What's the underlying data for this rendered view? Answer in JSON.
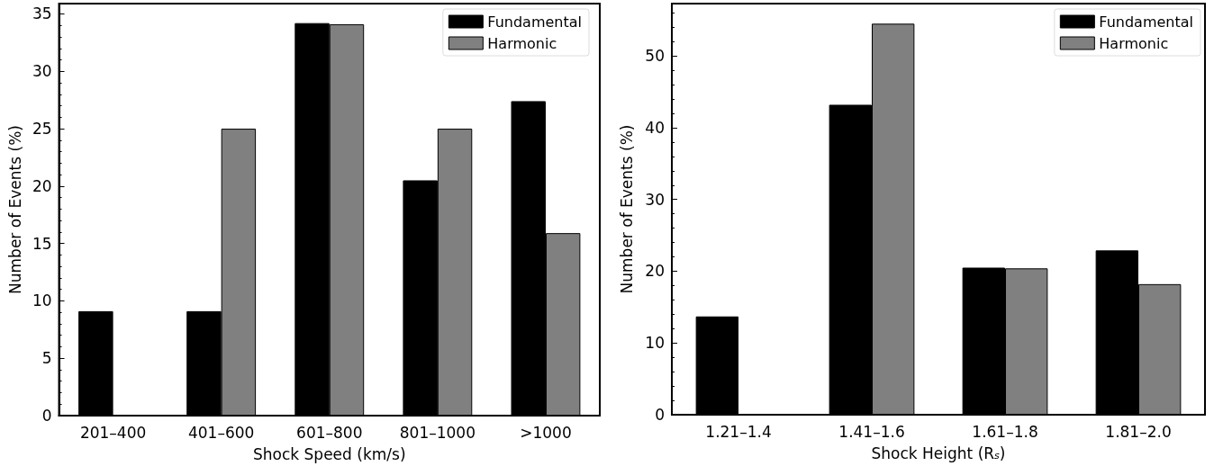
{
  "chart_data": [
    {
      "type": "bar",
      "xlabel": "Shock Speed (km/s)",
      "ylabel": "Number of Events (%)",
      "categories": [
        "201–400",
        "401–600",
        "601–800",
        "801–1000",
        ">1000"
      ],
      "series": [
        {
          "name": "Fundamental",
          "color": "#000000",
          "values": [
            9.1,
            9.1,
            34.2,
            20.5,
            27.4
          ]
        },
        {
          "name": "Harmonic",
          "color": "#808080",
          "values": [
            null,
            25,
            34.1,
            25,
            15.9
          ]
        }
      ],
      "ylim": [
        0,
        35.9
      ],
      "yticks": [
        0,
        5,
        10,
        15,
        20,
        25,
        30,
        35
      ],
      "legend": "top right",
      "grid": false
    },
    {
      "type": "bar",
      "xlabel": "Shock Height (R$_{s}$)",
      "ylabel": "Number of Events (%)",
      "categories": [
        "1.21–1.4",
        "1.41–1.6",
        "1.61–1.8",
        "1.81–2.0"
      ],
      "series": [
        {
          "name": "Fundamental",
          "color": "#000000",
          "values": [
            13.7,
            43.2,
            20.5,
            22.9
          ]
        },
        {
          "name": "Harmonic",
          "color": "#808080",
          "values": [
            null,
            54.5,
            20.4,
            18.2
          ]
        }
      ],
      "ylim": [
        0,
        57.3
      ],
      "yticks": [
        0,
        10,
        20,
        30,
        40,
        50
      ],
      "legend": "top right",
      "grid": false
    }
  ]
}
